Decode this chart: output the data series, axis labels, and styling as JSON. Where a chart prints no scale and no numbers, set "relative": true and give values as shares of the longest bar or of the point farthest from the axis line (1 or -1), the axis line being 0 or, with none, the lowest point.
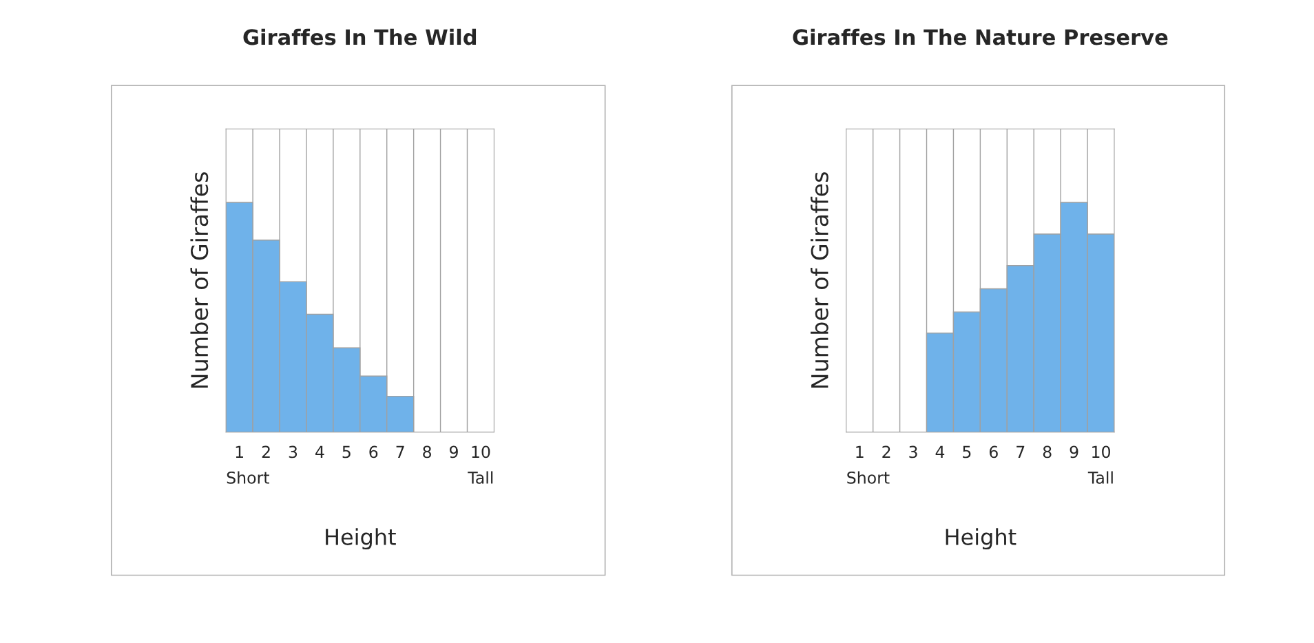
{
  "chart_data": [
    {
      "type": "bar",
      "title": "Giraffes In The Wild",
      "xlabel": "Height",
      "ylabel": "Number of Giraffes",
      "categories": [
        "1",
        "2",
        "3",
        "4",
        "5",
        "6",
        "7",
        "8",
        "9",
        "10"
      ],
      "relative": true,
      "color": "#6fb2ea",
      "values": [
        1,
        0.836,
        0.655,
        0.513,
        0.367,
        0.244,
        0.156,
        0,
        0,
        0
      ],
      "annotations": [
        "Short",
        "Tall"
      ],
      "grid": "x"
    },
    {
      "type": "bar",
      "title": "Giraffes In The Nature Preserve",
      "xlabel": "Height",
      "ylabel": "Number of Giraffes",
      "categories": [
        "1",
        "2",
        "3",
        "4",
        "5",
        "6",
        "7",
        "8",
        "9",
        "10"
      ],
      "relative": true,
      "color": "#6fb2ea",
      "values": [
        0,
        0,
        0,
        0.431,
        0.523,
        0.624,
        0.725,
        0.862,
        1,
        0.862
      ],
      "annotations": [
        "Short",
        "Tall"
      ],
      "grid": "x"
    }
  ]
}
